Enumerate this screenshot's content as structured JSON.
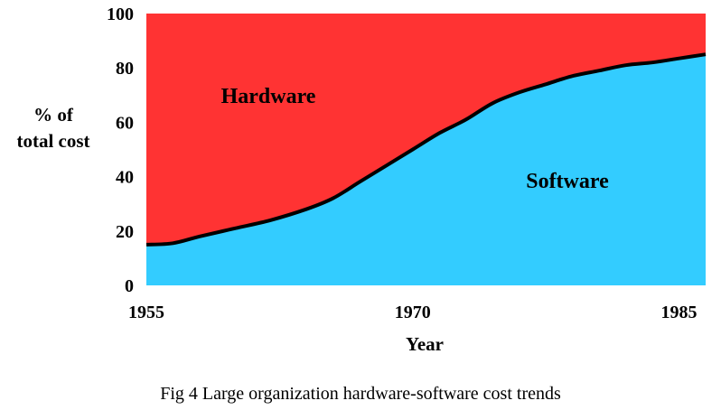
{
  "chart_data": {
    "type": "area",
    "title": "",
    "caption": "Fig 4 Large organization hardware-software cost trends",
    "xlabel": "Year",
    "ylabel_lines": [
      "% of",
      "total cost"
    ],
    "xlim": [
      1955,
      1986.5
    ],
    "ylim": [
      0,
      100
    ],
    "x_ticks": [
      "1955",
      "1970",
      "1985"
    ],
    "y_ticks": [
      "0",
      "20",
      "40",
      "60",
      "80",
      "100"
    ],
    "stacked": true,
    "x": [
      1955,
      1956.5,
      1958,
      1960,
      1962,
      1964,
      1965.5,
      1967,
      1968.5,
      1970,
      1971.5,
      1973,
      1974.5,
      1976,
      1977.5,
      1979,
      1980.5,
      1982,
      1983.5,
      1985,
      1986.5
    ],
    "series": [
      {
        "name": "Software",
        "color": "#33ccff",
        "values": [
          15,
          15.5,
          18,
          21,
          24,
          28,
          32,
          38,
          44,
          50,
          56,
          61,
          67,
          71,
          74,
          77,
          79,
          81,
          82,
          83.5,
          85
        ]
      },
      {
        "name": "Hardware",
        "color": "#ff3333",
        "values": [
          85,
          84.5,
          82,
          79,
          76,
          72,
          68,
          62,
          56,
          50,
          44,
          39,
          33,
          29,
          26,
          23,
          21,
          19,
          18,
          16.5,
          15
        ]
      }
    ],
    "boundary_color": "#000000",
    "grid": false,
    "legend": "none"
  }
}
